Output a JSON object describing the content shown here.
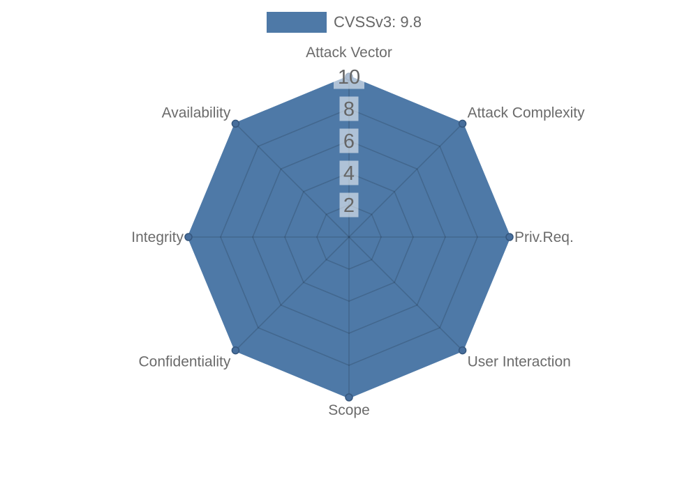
{
  "chart_data": {
    "type": "radar",
    "legend": {
      "label": "CVSSv3: 9.8",
      "position": "top"
    },
    "categories": [
      "Attack Vector",
      "Attack Complexity",
      "Priv.Req.",
      "User Interaction",
      "Scope",
      "Confidentiality",
      "Integrity",
      "Availability"
    ],
    "series": [
      {
        "name": "CVSSv3: 9.8",
        "values": [
          10,
          10,
          10,
          10,
          10,
          10,
          10,
          10
        ]
      }
    ],
    "radial_ticks": [
      2,
      4,
      6,
      8,
      10
    ],
    "r_range": [
      0,
      10
    ],
    "grid": true,
    "colors": {
      "fill": "#4e79a7",
      "border": "#4e79a7",
      "point": "#476e9c",
      "point_border": "#35577e",
      "grid_line": "rgba(0,0,0,0.15)",
      "tick_text": "#666666",
      "tick_backdrop": "rgba(255,255,255,0.55)",
      "label_text": "#6b6b6b",
      "legend_text": "#666666",
      "background": "#ffffff"
    }
  }
}
